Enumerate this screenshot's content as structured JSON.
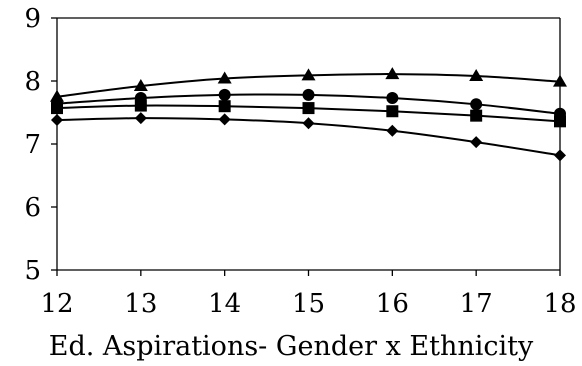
{
  "chart_data": {
    "type": "line",
    "title": "",
    "xlabel": "Ed. Aspirations- Gender x Ethnicity",
    "ylabel": "",
    "x": [
      12,
      13,
      14,
      15,
      16,
      17,
      18
    ],
    "xlim": [
      12,
      18
    ],
    "ylim": [
      5,
      9
    ],
    "x_ticks": [
      "12",
      "13",
      "14",
      "15",
      "16",
      "17",
      "18"
    ],
    "y_ticks": [
      "5",
      "6",
      "7",
      "8",
      "9"
    ],
    "grid": false,
    "legend": "none",
    "series": [
      {
        "marker": "triangle",
        "values": [
          7.75,
          7.92,
          8.04,
          8.09,
          8.11,
          8.08,
          7.99
        ]
      },
      {
        "marker": "circle",
        "values": [
          7.64,
          7.73,
          7.78,
          7.78,
          7.73,
          7.63,
          7.48
        ]
      },
      {
        "marker": "square",
        "values": [
          7.57,
          7.61,
          7.6,
          7.57,
          7.52,
          7.45,
          7.36
        ]
      },
      {
        "marker": "diamond",
        "values": [
          7.38,
          7.41,
          7.39,
          7.33,
          7.21,
          7.03,
          6.82
        ]
      }
    ],
    "colors": {
      "line": "#000000",
      "marker": "#000000",
      "background": "#ffffff"
    }
  }
}
